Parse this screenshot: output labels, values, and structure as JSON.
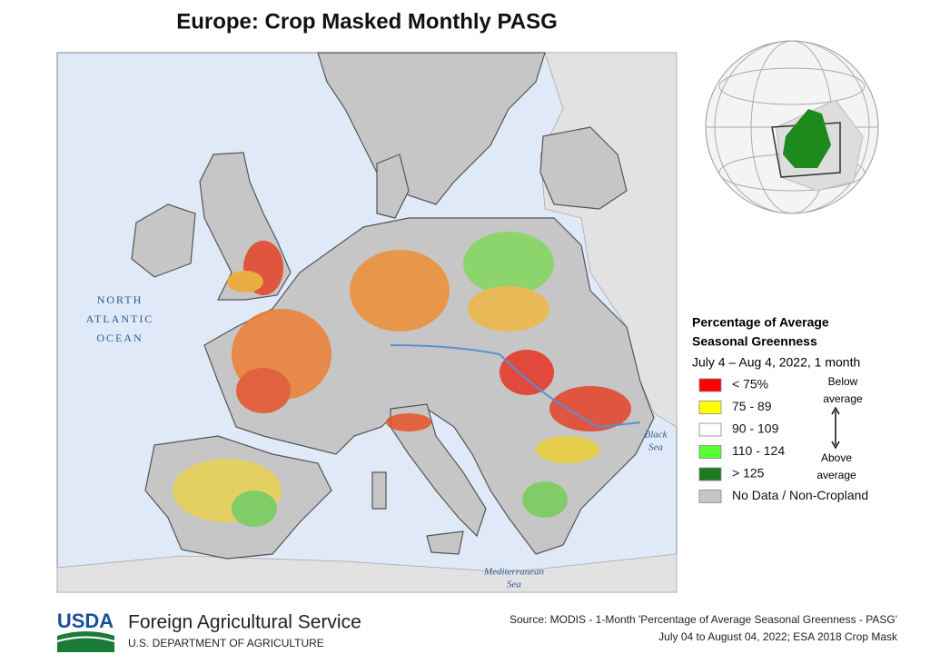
{
  "title": "Europe: Crop Masked Monthly PASG",
  "map_labels": {
    "ocean": [
      "NORTH",
      "ATLANTIC",
      "OCEAN"
    ],
    "black_sea": [
      "Black",
      "Sea"
    ],
    "mediterranean": [
      "Mediterranean",
      "Sea"
    ]
  },
  "legend": {
    "title": [
      "Percentage of Average",
      "Seasonal Greenness"
    ],
    "subtitle": "July 4 – Aug 4, 2022, 1 month",
    "items": [
      {
        "label": "< 75%",
        "color": "#ff0000"
      },
      {
        "label": "75 - 89",
        "color": "#ffff00"
      },
      {
        "label": "90 - 109",
        "color": "#ffffff"
      },
      {
        "label": "110 - 124",
        "color": "#55ff33"
      },
      {
        "label": "> 125",
        "color": "#1e7a1e"
      },
      {
        "label": "No Data / Non-Cropland",
        "color": "#c6c6c6"
      }
    ],
    "below": [
      "Below",
      "average"
    ],
    "above": [
      "Above",
      "average"
    ]
  },
  "footer": {
    "logo": "USDA",
    "agency": "Foreign Agricultural Service",
    "department": "U.S. DEPARTMENT OF AGRICULTURE",
    "source": [
      "Source: MODIS - 1-Month 'Percentage of Average Seasonal Greenness - PASG'",
      "July 04 to August 04, 2022; ESA 2018 Crop Mask"
    ]
  }
}
